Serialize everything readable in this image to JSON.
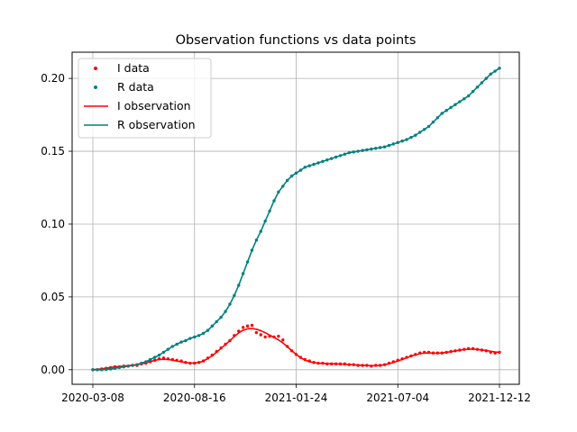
{
  "chart_data": {
    "type": "line",
    "title": "Observation functions vs data points",
    "xlabel": "",
    "ylabel": "",
    "x_ticks": [
      "2020-03-08",
      "2020-08-16",
      "2021-01-24",
      "2021-07-04",
      "2021-12-12"
    ],
    "x_range": [
      "2020-03-08",
      "2021-12-12"
    ],
    "y_ticks": [
      "0.00",
      "0.05",
      "0.10",
      "0.15",
      "0.20"
    ],
    "ylim": [
      -0.01,
      0.218
    ],
    "grid": true,
    "legend_position": "top-left",
    "x": [
      "2020-03-08",
      "2020-03-15",
      "2020-03-22",
      "2020-03-29",
      "2020-04-05",
      "2020-04-12",
      "2020-04-19",
      "2020-04-26",
      "2020-05-03",
      "2020-05-10",
      "2020-05-17",
      "2020-05-24",
      "2020-05-31",
      "2020-06-07",
      "2020-06-14",
      "2020-06-21",
      "2020-06-28",
      "2020-07-05",
      "2020-07-12",
      "2020-07-19",
      "2020-07-26",
      "2020-08-02",
      "2020-08-09",
      "2020-08-16",
      "2020-08-23",
      "2020-08-30",
      "2020-09-06",
      "2020-09-13",
      "2020-09-20",
      "2020-09-27",
      "2020-10-04",
      "2020-10-11",
      "2020-10-18",
      "2020-10-25",
      "2020-11-01",
      "2020-11-08",
      "2020-11-15",
      "2020-11-22",
      "2020-11-29",
      "2020-12-06",
      "2020-12-13",
      "2020-12-20",
      "2020-12-27",
      "2021-01-03",
      "2021-01-10",
      "2021-01-17",
      "2021-01-24",
      "2021-01-31",
      "2021-02-07",
      "2021-02-14",
      "2021-02-21",
      "2021-02-28",
      "2021-03-07",
      "2021-03-14",
      "2021-03-21",
      "2021-03-28",
      "2021-04-04",
      "2021-04-11",
      "2021-04-18",
      "2021-04-25",
      "2021-05-02",
      "2021-05-09",
      "2021-05-16",
      "2021-05-23",
      "2021-05-30",
      "2021-06-06",
      "2021-06-13",
      "2021-06-20",
      "2021-06-27",
      "2021-07-04",
      "2021-07-11",
      "2021-07-18",
      "2021-07-25",
      "2021-08-01",
      "2021-08-08",
      "2021-08-15",
      "2021-08-22",
      "2021-08-29",
      "2021-09-05",
      "2021-09-12",
      "2021-09-19",
      "2021-09-26",
      "2021-10-03",
      "2021-10-10",
      "2021-10-17",
      "2021-10-24",
      "2021-10-31",
      "2021-11-07",
      "2021-11-14",
      "2021-11-21",
      "2021-11-28",
      "2021-12-05",
      "2021-12-12"
    ],
    "series": [
      {
        "name": "I data",
        "kind": "points",
        "color": "#ff0000",
        "values": [
          0.0,
          0.0,
          0.0005,
          0.001,
          0.0015,
          0.002,
          0.002,
          0.0025,
          0.0025,
          0.003,
          0.003,
          0.004,
          0.0045,
          0.0055,
          0.0065,
          0.0075,
          0.008,
          0.0075,
          0.007,
          0.0065,
          0.006,
          0.005,
          0.0045,
          0.0045,
          0.005,
          0.006,
          0.008,
          0.01,
          0.0125,
          0.015,
          0.0175,
          0.02,
          0.0235,
          0.0265,
          0.029,
          0.03,
          0.0305,
          0.0255,
          0.024,
          0.0225,
          0.023,
          0.0225,
          0.023,
          0.0205,
          0.016,
          0.013,
          0.0105,
          0.0085,
          0.007,
          0.006,
          0.005,
          0.0045,
          0.0045,
          0.004,
          0.004,
          0.004,
          0.004,
          0.004,
          0.0035,
          0.0035,
          0.003,
          0.003,
          0.003,
          0.0025,
          0.003,
          0.003,
          0.0035,
          0.0045,
          0.0055,
          0.0065,
          0.0075,
          0.0085,
          0.0095,
          0.0105,
          0.0115,
          0.012,
          0.012,
          0.0115,
          0.0115,
          0.0115,
          0.012,
          0.0125,
          0.013,
          0.0135,
          0.014,
          0.0145,
          0.0145,
          0.014,
          0.0135,
          0.013,
          0.012,
          0.0115,
          0.012
        ]
      },
      {
        "name": "R data",
        "kind": "points",
        "color": "#008080",
        "values": [
          0.0,
          0.0,
          0.0,
          0.0002,
          0.0005,
          0.001,
          0.0015,
          0.002,
          0.0025,
          0.003,
          0.0035,
          0.0045,
          0.0055,
          0.007,
          0.0085,
          0.01,
          0.012,
          0.014,
          0.016,
          0.0175,
          0.019,
          0.02,
          0.0215,
          0.0225,
          0.0235,
          0.025,
          0.027,
          0.03,
          0.033,
          0.036,
          0.04,
          0.045,
          0.051,
          0.058,
          0.066,
          0.074,
          0.082,
          0.089,
          0.095,
          0.102,
          0.109,
          0.116,
          0.122,
          0.126,
          0.13,
          0.133,
          0.135,
          0.137,
          0.139,
          0.14,
          0.141,
          0.142,
          0.143,
          0.144,
          0.145,
          0.146,
          0.147,
          0.148,
          0.149,
          0.1495,
          0.15,
          0.1505,
          0.151,
          0.1515,
          0.152,
          0.1525,
          0.153,
          0.154,
          0.155,
          0.156,
          0.157,
          0.158,
          0.1595,
          0.161,
          0.163,
          0.165,
          0.167,
          0.17,
          0.173,
          0.176,
          0.178,
          0.18,
          0.182,
          0.184,
          0.186,
          0.188,
          0.191,
          0.194,
          0.197,
          0.2,
          0.203,
          0.205,
          0.207
        ]
      },
      {
        "name": "I observation",
        "kind": "line",
        "color": "#ff0000",
        "values": [
          0.0,
          0.0003,
          0.0006,
          0.001,
          0.0015,
          0.002,
          0.0022,
          0.0025,
          0.0028,
          0.0031,
          0.0035,
          0.0041,
          0.0048,
          0.0056,
          0.0064,
          0.007,
          0.0072,
          0.007,
          0.0066,
          0.006,
          0.0054,
          0.0049,
          0.0046,
          0.0046,
          0.005,
          0.006,
          0.0076,
          0.0097,
          0.012,
          0.0146,
          0.0173,
          0.02,
          0.0228,
          0.0253,
          0.0271,
          0.0281,
          0.0283,
          0.0278,
          0.0268,
          0.0254,
          0.0238,
          0.0222,
          0.0205,
          0.0184,
          0.0158,
          0.0131,
          0.0105,
          0.0083,
          0.0066,
          0.0055,
          0.0049,
          0.0045,
          0.0043,
          0.0042,
          0.0041,
          0.004,
          0.0039,
          0.0038,
          0.0036,
          0.0034,
          0.0032,
          0.003,
          0.0029,
          0.0028,
          0.0028,
          0.003,
          0.0034,
          0.0041,
          0.005,
          0.006,
          0.0071,
          0.0082,
          0.0093,
          0.0103,
          0.011,
          0.0114,
          0.0115,
          0.0114,
          0.0114,
          0.0115,
          0.0119,
          0.0124,
          0.0129,
          0.0134,
          0.0138,
          0.0141,
          0.0141,
          0.0139,
          0.0136,
          0.0132,
          0.0127,
          0.0122,
          0.0118
        ]
      },
      {
        "name": "R observation",
        "kind": "line",
        "color": "#008080",
        "values": [
          0.0,
          0.0,
          0.0,
          0.0002,
          0.0005,
          0.001,
          0.0015,
          0.002,
          0.0025,
          0.003,
          0.0035,
          0.0045,
          0.0055,
          0.007,
          0.0085,
          0.01,
          0.012,
          0.014,
          0.016,
          0.0175,
          0.019,
          0.02,
          0.0215,
          0.0225,
          0.0235,
          0.025,
          0.027,
          0.03,
          0.033,
          0.036,
          0.04,
          0.045,
          0.051,
          0.058,
          0.066,
          0.074,
          0.082,
          0.089,
          0.095,
          0.102,
          0.109,
          0.116,
          0.122,
          0.126,
          0.13,
          0.133,
          0.135,
          0.137,
          0.139,
          0.14,
          0.141,
          0.142,
          0.143,
          0.144,
          0.145,
          0.146,
          0.147,
          0.148,
          0.149,
          0.1495,
          0.15,
          0.1505,
          0.151,
          0.1515,
          0.152,
          0.1525,
          0.153,
          0.154,
          0.155,
          0.156,
          0.157,
          0.158,
          0.1595,
          0.161,
          0.163,
          0.165,
          0.167,
          0.17,
          0.173,
          0.176,
          0.178,
          0.18,
          0.182,
          0.184,
          0.186,
          0.188,
          0.191,
          0.194,
          0.197,
          0.2,
          0.203,
          0.205,
          0.207
        ]
      }
    ]
  },
  "legend": {
    "items": [
      {
        "label": "I data",
        "kind": "point",
        "color": "#ff0000"
      },
      {
        "label": "R data",
        "kind": "point",
        "color": "#008080"
      },
      {
        "label": "I observation",
        "kind": "line",
        "color": "#ff0000"
      },
      {
        "label": "R observation",
        "kind": "line",
        "color": "#008080"
      }
    ]
  }
}
